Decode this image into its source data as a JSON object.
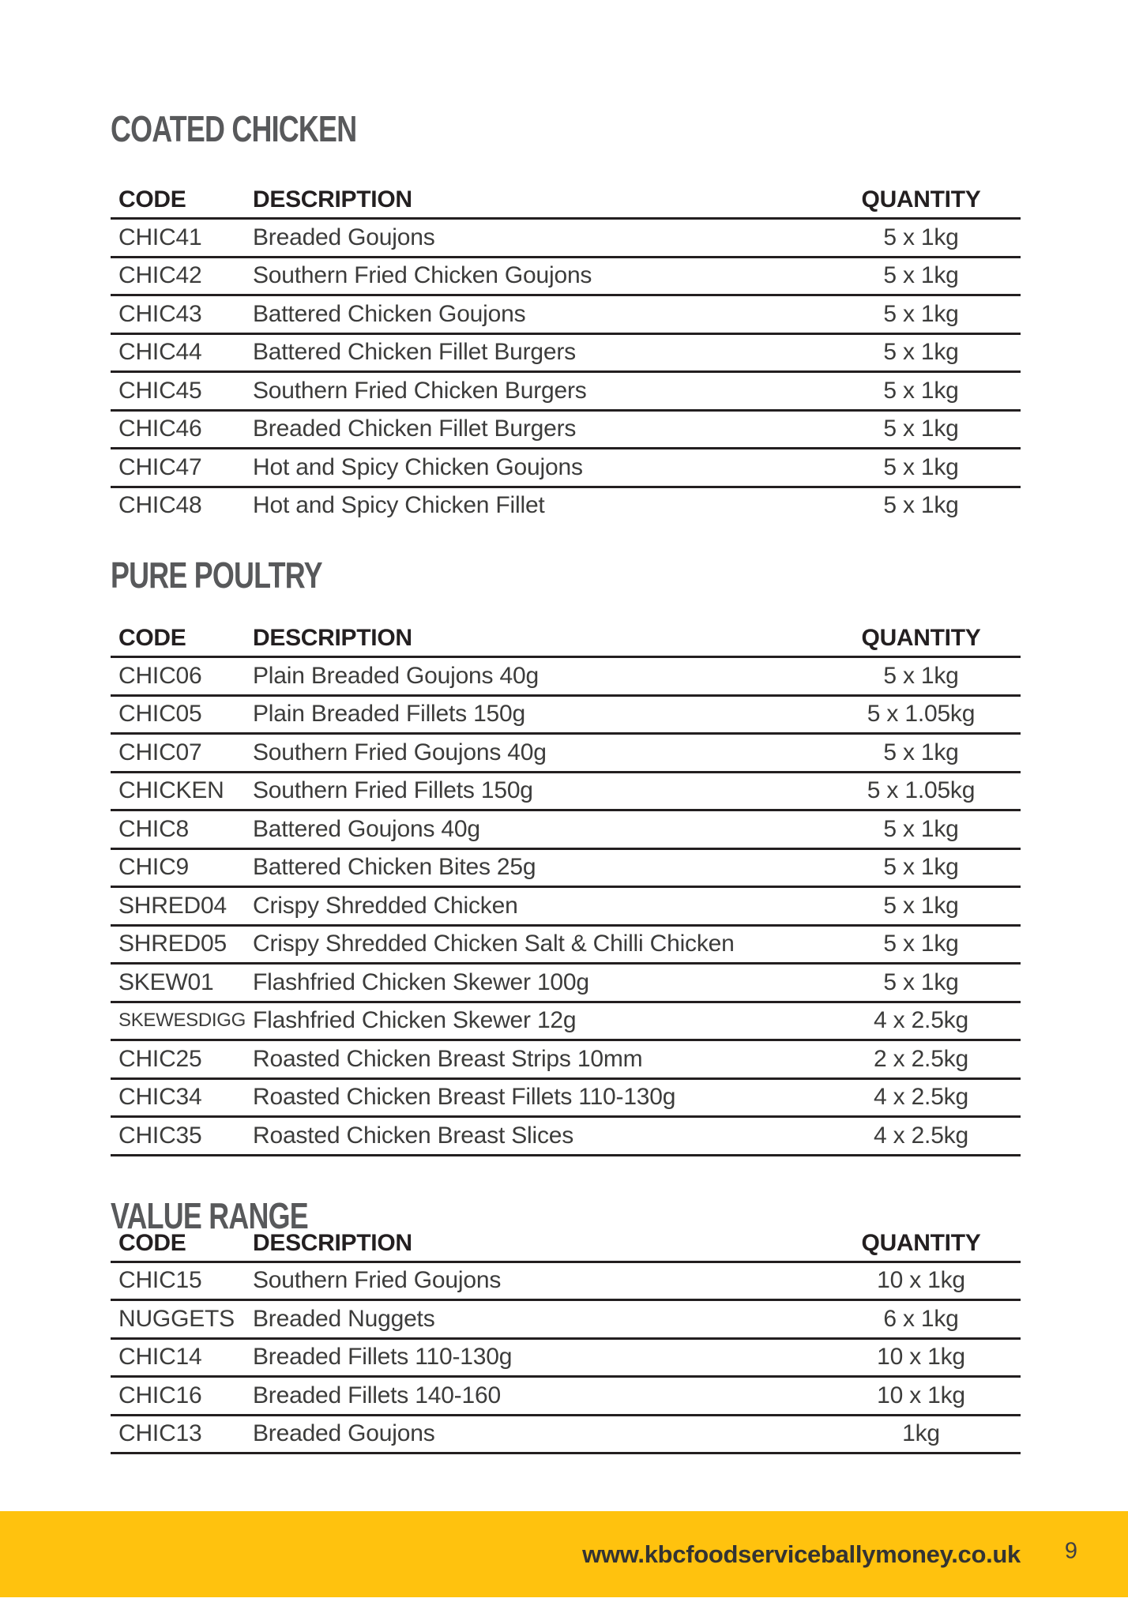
{
  "page": {
    "footer": {
      "website": "www.kbcfoodserviceballymoney.co.uk",
      "page_number": "9"
    },
    "colors": {
      "accent_yellow": "#FFC20E",
      "heading_gray": "#58595B",
      "table_text": "#3C3C3B",
      "line_black": "#231F20"
    }
  },
  "sections": [
    {
      "title": "COATED CHICKEN",
      "columns": {
        "code": "CODE",
        "description": "DESCRIPTION",
        "quantity": "QUANTITY"
      },
      "rows": [
        {
          "code": "CHIC41",
          "description": "Breaded Goujons",
          "quantity": "5 x 1kg"
        },
        {
          "code": "CHIC42",
          "description": "Southern Fried Chicken Goujons",
          "quantity": "5 x 1kg"
        },
        {
          "code": "CHIC43",
          "description": "Battered Chicken Goujons",
          "quantity": "5 x 1kg"
        },
        {
          "code": "CHIC44",
          "description": "Battered Chicken Fillet Burgers",
          "quantity": "5 x 1kg"
        },
        {
          "code": "CHIC45",
          "description": "Southern Fried Chicken Burgers",
          "quantity": "5 x 1kg"
        },
        {
          "code": "CHIC46",
          "description": "Breaded Chicken Fillet Burgers",
          "quantity": "5 x 1kg"
        },
        {
          "code": "CHIC47",
          "description": "Hot and Spicy Chicken Goujons",
          "quantity": "5 x 1kg"
        },
        {
          "code": "CHIC48",
          "description": "Hot and Spicy Chicken Fillet",
          "quantity": "5 x 1kg"
        }
      ]
    },
    {
      "title": "PURE POULTRY",
      "columns": {
        "code": "CODE",
        "description": "DESCRIPTION",
        "quantity": "QUANTITY"
      },
      "rows": [
        {
          "code": "CHIC06",
          "description": "Plain Breaded Goujons 40g",
          "quantity": "5 x 1kg"
        },
        {
          "code": "CHIC05",
          "description": "Plain Breaded Fillets 150g",
          "quantity": "5 x 1.05kg"
        },
        {
          "code": "CHIC07",
          "description": "Southern Fried Goujons 40g",
          "quantity": "5 x 1kg"
        },
        {
          "code": "CHICKEN",
          "description": "Southern Fried Fillets 150g",
          "quantity": "5 x 1.05kg"
        },
        {
          "code": "CHIC8",
          "description": "Battered Goujons 40g",
          "quantity": "5 x 1kg"
        },
        {
          "code": "CHIC9",
          "description": "Battered Chicken Bites 25g",
          "quantity": "5 x 1kg"
        },
        {
          "code": "SHRED04",
          "description": "Crispy Shredded Chicken",
          "quantity": "5 x 1kg"
        },
        {
          "code": "SHRED05",
          "description": "Crispy Shredded Chicken Salt & Chilli Chicken",
          "quantity": "5 x 1kg"
        },
        {
          "code": "SKEW01",
          "description": "Flashfried Chicken Skewer 100g",
          "quantity": "5 x 1kg"
        },
        {
          "code": "SKEWESDIGG",
          "description": "Flashfried Chicken Skewer 12g",
          "quantity": "4 x 2.5kg"
        },
        {
          "code": "CHIC25",
          "description": "Roasted Chicken Breast Strips 10mm",
          "quantity": "2 x 2.5kg"
        },
        {
          "code": "CHIC34",
          "description": "Roasted Chicken Breast Fillets 110-130g",
          "quantity": "4 x 2.5kg"
        },
        {
          "code": "CHIC35",
          "description": "Roasted Chicken Breast Slices",
          "quantity": "4 x 2.5kg"
        }
      ]
    },
    {
      "title": "VALUE RANGE",
      "columns": {
        "code": "CODE",
        "description": "DESCRIPTION",
        "quantity": "QUANTITY"
      },
      "rows": [
        {
          "code": "CHIC15",
          "description": "Southern Fried Goujons",
          "quantity": "10 x 1kg"
        },
        {
          "code": "NUGGETS",
          "description": "Breaded Nuggets",
          "quantity": "6 x 1kg"
        },
        {
          "code": "CHIC14",
          "description": "Breaded Fillets 110-130g",
          "quantity": "10 x 1kg"
        },
        {
          "code": "CHIC16",
          "description": "Breaded Fillets 140-160",
          "quantity": "10 x 1kg"
        },
        {
          "code": "CHIC13",
          "description": "Breaded Goujons",
          "quantity": "1kg"
        }
      ]
    }
  ]
}
